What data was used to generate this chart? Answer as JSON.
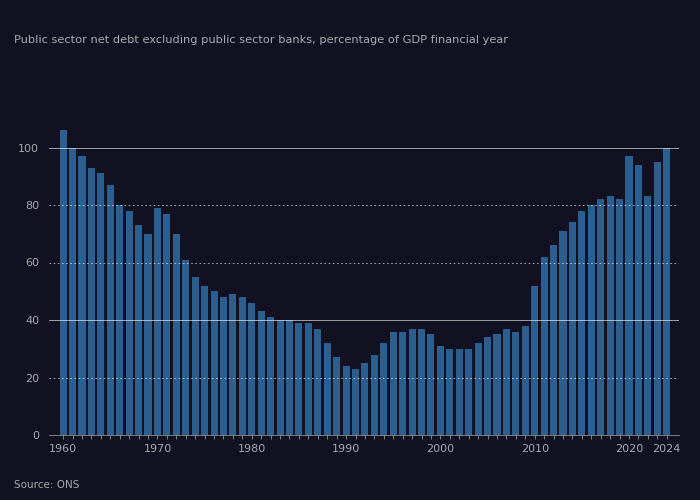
{
  "title": "Public sector net debt excluding public sector banks, percentage of GDP financial year",
  "source": "Source: ONS",
  "bar_color": "#2A5F8F",
  "background_color": "#111122",
  "text_color": "#aaaaaa",
  "years": [
    1960,
    1961,
    1962,
    1963,
    1964,
    1965,
    1966,
    1967,
    1968,
    1969,
    1970,
    1971,
    1972,
    1973,
    1974,
    1975,
    1976,
    1977,
    1978,
    1979,
    1980,
    1981,
    1982,
    1983,
    1984,
    1985,
    1986,
    1987,
    1988,
    1989,
    1990,
    1991,
    1992,
    1993,
    1994,
    1995,
    1996,
    1997,
    1998,
    1999,
    2000,
    2001,
    2002,
    2003,
    2004,
    2005,
    2006,
    2007,
    2008,
    2009,
    2010,
    2011,
    2012,
    2013,
    2014,
    2015,
    2016,
    2017,
    2018,
    2019,
    2020,
    2021,
    2022,
    2023,
    2024
  ],
  "values": [
    106,
    100,
    97,
    93,
    91,
    87,
    80,
    78,
    73,
    70,
    79,
    77,
    70,
    61,
    55,
    52,
    50,
    48,
    49,
    48,
    46,
    43,
    41,
    40,
    40,
    39,
    39,
    37,
    32,
    27,
    24,
    23,
    25,
    28,
    32,
    36,
    36,
    37,
    37,
    35,
    31,
    30,
    30,
    30,
    32,
    34,
    35,
    37,
    36,
    38,
    52,
    62,
    66,
    71,
    74,
    78,
    80,
    82,
    83,
    82,
    97,
    94,
    83,
    95,
    100
  ],
  "ylim": [
    0,
    120
  ],
  "yticks": [
    0,
    20,
    40,
    60,
    80,
    100
  ],
  "solid_lines": [
    100,
    40
  ],
  "dotted_lines": [
    80,
    60,
    20
  ]
}
